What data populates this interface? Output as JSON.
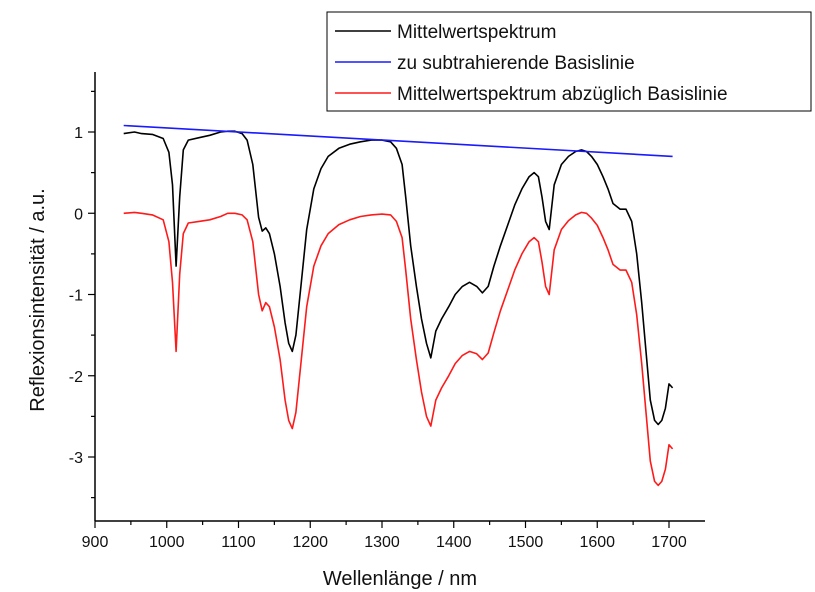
{
  "chart_data": {
    "type": "line",
    "xlabel": "Wellenlänge / nm",
    "ylabel": "Reflexionsintensität / a.u.",
    "xlim": [
      900,
      1750
    ],
    "ylim": [
      -3.7,
      1.75
    ],
    "xticks": [
      900,
      1000,
      1100,
      1200,
      1300,
      1400,
      1500,
      1600,
      1700
    ],
    "yticks": [
      1,
      0,
      -1,
      -2,
      -3
    ],
    "grid": false,
    "legend_position": "top-right",
    "series": [
      {
        "name": "Mittelwertspektrum",
        "color": "#000000",
        "x": [
          940,
          955,
          965,
          980,
          995,
          1003,
          1008,
          1013,
          1018,
          1023,
          1030,
          1045,
          1060,
          1075,
          1085,
          1095,
          1105,
          1112,
          1120,
          1128,
          1133,
          1138,
          1143,
          1150,
          1158,
          1165,
          1170,
          1175,
          1180,
          1187,
          1195,
          1205,
          1215,
          1225,
          1240,
          1255,
          1270,
          1285,
          1300,
          1312,
          1320,
          1328,
          1333,
          1340,
          1348,
          1355,
          1362,
          1368,
          1375,
          1383,
          1393,
          1402,
          1412,
          1422,
          1432,
          1440,
          1448,
          1456,
          1465,
          1475,
          1485,
          1495,
          1505,
          1512,
          1518,
          1523,
          1528,
          1533,
          1540,
          1550,
          1560,
          1570,
          1578,
          1585,
          1592,
          1600,
          1608,
          1615,
          1622,
          1632,
          1640,
          1648,
          1655,
          1662,
          1668,
          1674,
          1680,
          1685,
          1690,
          1695,
          1700,
          1705
        ],
        "values": [
          0.98,
          1.0,
          0.98,
          0.97,
          0.92,
          0.75,
          0.35,
          -0.65,
          0.2,
          0.78,
          0.9,
          0.93,
          0.96,
          1.0,
          1.01,
          1.01,
          0.98,
          0.9,
          0.6,
          -0.05,
          -0.22,
          -0.18,
          -0.25,
          -0.5,
          -0.9,
          -1.35,
          -1.6,
          -1.7,
          -1.5,
          -0.9,
          -0.2,
          0.3,
          0.55,
          0.7,
          0.8,
          0.85,
          0.88,
          0.9,
          0.9,
          0.88,
          0.8,
          0.6,
          0.2,
          -0.4,
          -0.9,
          -1.3,
          -1.6,
          -1.78,
          -1.45,
          -1.3,
          -1.15,
          -1.0,
          -0.9,
          -0.85,
          -0.9,
          -0.98,
          -0.9,
          -0.65,
          -0.4,
          -0.15,
          0.1,
          0.3,
          0.45,
          0.5,
          0.45,
          0.2,
          -0.1,
          -0.2,
          0.35,
          0.6,
          0.7,
          0.76,
          0.78,
          0.76,
          0.7,
          0.6,
          0.45,
          0.3,
          0.12,
          0.05,
          0.05,
          -0.1,
          -0.5,
          -1.1,
          -1.7,
          -2.3,
          -2.55,
          -2.6,
          -2.55,
          -2.4,
          -2.1,
          -2.15
        ]
      },
      {
        "name": "zu subtrahierende Basislinie",
        "color": "#1a1aff",
        "x": [
          940,
          1705
        ],
        "values": [
          1.08,
          0.7
        ]
      },
      {
        "name": "Mittelwertspektrum abzüglich Basislinie",
        "color": "#ff1a1a",
        "x": [
          940,
          955,
          965,
          980,
          995,
          1003,
          1008,
          1013,
          1018,
          1023,
          1030,
          1045,
          1060,
          1075,
          1085,
          1095,
          1105,
          1112,
          1120,
          1128,
          1133,
          1138,
          1143,
          1150,
          1158,
          1165,
          1170,
          1175,
          1180,
          1187,
          1195,
          1205,
          1215,
          1225,
          1240,
          1255,
          1270,
          1285,
          1300,
          1312,
          1320,
          1328,
          1333,
          1340,
          1348,
          1355,
          1362,
          1368,
          1375,
          1383,
          1393,
          1402,
          1412,
          1422,
          1432,
          1440,
          1448,
          1456,
          1465,
          1475,
          1485,
          1495,
          1505,
          1512,
          1518,
          1523,
          1528,
          1533,
          1540,
          1550,
          1560,
          1570,
          1578,
          1585,
          1592,
          1600,
          1608,
          1615,
          1622,
          1632,
          1640,
          1648,
          1655,
          1662,
          1668,
          1674,
          1680,
          1685,
          1690,
          1695,
          1700,
          1705
        ],
        "values": [
          0.0,
          0.01,
          0.0,
          -0.02,
          -0.08,
          -0.35,
          -0.85,
          -1.7,
          -0.75,
          -0.25,
          -0.12,
          -0.1,
          -0.08,
          -0.04,
          0.0,
          0.0,
          -0.02,
          -0.08,
          -0.35,
          -1.0,
          -1.2,
          -1.1,
          -1.15,
          -1.4,
          -1.8,
          -2.3,
          -2.55,
          -2.65,
          -2.45,
          -1.85,
          -1.15,
          -0.65,
          -0.4,
          -0.25,
          -0.14,
          -0.08,
          -0.04,
          -0.02,
          -0.01,
          -0.02,
          -0.1,
          -0.3,
          -0.7,
          -1.3,
          -1.8,
          -2.2,
          -2.5,
          -2.62,
          -2.3,
          -2.15,
          -2.0,
          -1.85,
          -1.75,
          -1.7,
          -1.73,
          -1.8,
          -1.72,
          -1.47,
          -1.2,
          -0.95,
          -0.7,
          -0.5,
          -0.35,
          -0.3,
          -0.35,
          -0.6,
          -0.9,
          -1.0,
          -0.45,
          -0.2,
          -0.09,
          -0.02,
          0.01,
          0.0,
          -0.06,
          -0.15,
          -0.3,
          -0.45,
          -0.63,
          -0.7,
          -0.7,
          -0.85,
          -1.25,
          -1.85,
          -2.45,
          -3.05,
          -3.3,
          -3.35,
          -3.3,
          -3.15,
          -2.85,
          -2.9
        ]
      }
    ]
  }
}
